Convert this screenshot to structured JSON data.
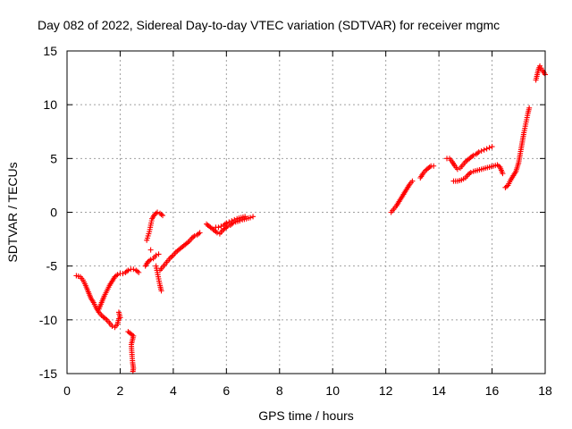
{
  "chart_data": {
    "type": "scatter",
    "title": "Day 082 of 2022, Sidereal Day-to-day VTEC variation (SDTVAR) for receiver mgmc",
    "xlabel": "GPS time / hours",
    "ylabel": "SDTVAR / TECUs",
    "xlim": [
      0,
      18
    ],
    "ylim": [
      -15,
      15
    ],
    "xticks": [
      0,
      2,
      4,
      6,
      8,
      10,
      12,
      14,
      16,
      18
    ],
    "yticks": [
      -15,
      -10,
      -5,
      0,
      5,
      10,
      15
    ],
    "grid": true,
    "marker": "+",
    "color": "#ff0000",
    "segments": [
      [
        [
          0.35,
          -5.9
        ],
        [
          0.5,
          -6.0
        ],
        [
          0.6,
          -6.3
        ],
        [
          0.7,
          -6.8
        ],
        [
          0.8,
          -7.4
        ],
        [
          0.9,
          -8.0
        ],
        [
          1.0,
          -8.4
        ],
        [
          1.1,
          -8.9
        ],
        [
          1.2,
          -9.3
        ],
        [
          1.3,
          -9.6
        ],
        [
          1.4,
          -9.8
        ],
        [
          1.5,
          -10.0
        ],
        [
          1.6,
          -10.3
        ],
        [
          1.7,
          -10.6
        ],
        [
          1.8,
          -10.7
        ],
        [
          1.9,
          -10.4
        ],
        [
          1.95,
          -9.9
        ]
      ],
      [
        [
          1.2,
          -9.0
        ],
        [
          1.3,
          -8.4
        ],
        [
          1.4,
          -7.8
        ],
        [
          1.5,
          -7.3
        ],
        [
          1.6,
          -6.8
        ],
        [
          1.7,
          -6.4
        ],
        [
          1.8,
          -6.0
        ],
        [
          1.9,
          -5.8
        ],
        [
          2.0,
          -5.7
        ],
        [
          2.1,
          -5.7
        ],
        [
          2.2,
          -5.6
        ],
        [
          2.3,
          -5.4
        ],
        [
          2.4,
          -5.3
        ],
        [
          2.5,
          -5.3
        ],
        [
          2.6,
          -5.4
        ],
        [
          2.7,
          -5.6
        ]
      ],
      [
        [
          1.95,
          -9.3
        ],
        [
          2.0,
          -9.8
        ]
      ],
      [
        [
          2.3,
          -11.1
        ],
        [
          2.35,
          -11.2
        ],
        [
          2.4,
          -11.3
        ],
        [
          2.45,
          -11.4
        ],
        [
          2.5,
          -11.5
        ],
        [
          2.42,
          -12.3
        ],
        [
          2.45,
          -13.4
        ],
        [
          2.47,
          -14.0
        ],
        [
          2.5,
          -14.5
        ],
        [
          2.48,
          -14.8
        ]
      ],
      [
        [
          2.95,
          -5.0
        ],
        [
          3.05,
          -4.6
        ],
        [
          3.15,
          -4.4
        ],
        [
          3.25,
          -4.3
        ],
        [
          3.35,
          -4.0
        ],
        [
          3.45,
          -3.9
        ]
      ],
      [
        [
          3.0,
          -2.6
        ],
        [
          3.05,
          -2.2
        ],
        [
          3.1,
          -1.8
        ],
        [
          3.15,
          -1.2
        ],
        [
          3.2,
          -0.6
        ],
        [
          3.3,
          -0.2
        ],
        [
          3.4,
          0.0
        ],
        [
          3.5,
          -0.1
        ],
        [
          3.6,
          -0.3
        ]
      ],
      [
        [
          3.15,
          -3.5
        ]
      ],
      [
        [
          3.35,
          -5.0
        ],
        [
          3.4,
          -5.6
        ],
        [
          3.45,
          -6.2
        ],
        [
          3.5,
          -6.8
        ],
        [
          3.55,
          -7.3
        ]
      ],
      [
        [
          3.5,
          -5.4
        ],
        [
          3.6,
          -5.1
        ],
        [
          3.7,
          -4.8
        ],
        [
          3.8,
          -4.5
        ],
        [
          3.9,
          -4.2
        ],
        [
          4.0,
          -4.0
        ],
        [
          4.1,
          -3.7
        ],
        [
          4.2,
          -3.5
        ],
        [
          4.3,
          -3.3
        ],
        [
          4.4,
          -3.1
        ],
        [
          4.5,
          -2.9
        ],
        [
          4.6,
          -2.7
        ],
        [
          4.7,
          -2.4
        ],
        [
          4.8,
          -2.2
        ],
        [
          4.9,
          -2.1
        ],
        [
          5.0,
          -1.9
        ]
      ],
      [
        [
          5.25,
          -1.1
        ],
        [
          5.35,
          -1.3
        ],
        [
          5.45,
          -1.5
        ],
        [
          5.55,
          -1.7
        ],
        [
          5.65,
          -1.9
        ],
        [
          5.75,
          -2.0
        ],
        [
          5.85,
          -1.7
        ],
        [
          5.95,
          -1.5
        ],
        [
          6.05,
          -1.3
        ],
        [
          6.15,
          -1.2
        ],
        [
          6.25,
          -1.0
        ],
        [
          6.35,
          -0.9
        ],
        [
          6.5,
          -0.8
        ],
        [
          6.6,
          -0.7
        ],
        [
          6.75,
          -0.6
        ],
        [
          6.9,
          -0.5
        ],
        [
          7.0,
          -0.4
        ]
      ],
      [
        [
          5.6,
          -1.4
        ],
        [
          5.7,
          -1.4
        ],
        [
          5.8,
          -1.3
        ],
        [
          5.9,
          -1.2
        ],
        [
          6.0,
          -1.0
        ],
        [
          6.1,
          -0.9
        ],
        [
          6.2,
          -0.8
        ],
        [
          6.3,
          -0.7
        ],
        [
          6.4,
          -0.6
        ],
        [
          6.55,
          -0.5
        ],
        [
          6.7,
          -0.4
        ]
      ],
      [
        [
          12.2,
          0.0
        ],
        [
          12.3,
          0.3
        ],
        [
          12.4,
          0.6
        ],
        [
          12.5,
          1.0
        ],
        [
          12.6,
          1.4
        ],
        [
          12.7,
          1.8
        ],
        [
          12.8,
          2.2
        ],
        [
          12.9,
          2.6
        ],
        [
          13.0,
          2.9
        ]
      ],
      [
        [
          13.3,
          3.2
        ],
        [
          13.4,
          3.6
        ],
        [
          13.5,
          3.9
        ],
        [
          13.6,
          4.1
        ],
        [
          13.7,
          4.3
        ],
        [
          13.8,
          4.3
        ]
      ],
      [
        [
          14.3,
          5.0
        ],
        [
          14.4,
          5.0
        ],
        [
          14.5,
          4.7
        ],
        [
          14.6,
          4.3
        ],
        [
          14.7,
          4.0
        ],
        [
          14.8,
          4.1
        ],
        [
          14.9,
          4.4
        ],
        [
          15.0,
          4.7
        ],
        [
          15.1,
          4.9
        ],
        [
          15.2,
          5.1
        ],
        [
          15.3,
          5.3
        ],
        [
          15.4,
          5.4
        ],
        [
          15.5,
          5.6
        ],
        [
          15.6,
          5.7
        ],
        [
          15.7,
          5.8
        ],
        [
          15.8,
          5.9
        ],
        [
          15.9,
          6.0
        ],
        [
          16.0,
          6.1
        ]
      ],
      [
        [
          14.55,
          2.9
        ],
        [
          14.7,
          2.9
        ],
        [
          14.85,
          3.0
        ],
        [
          15.0,
          3.2
        ],
        [
          15.1,
          3.5
        ],
        [
          15.2,
          3.7
        ],
        [
          15.3,
          3.8
        ],
        [
          15.45,
          3.9
        ],
        [
          15.6,
          4.0
        ],
        [
          15.75,
          4.1
        ],
        [
          15.9,
          4.2
        ],
        [
          16.05,
          4.3
        ],
        [
          16.2,
          4.4
        ],
        [
          16.3,
          4.2
        ],
        [
          16.4,
          3.6
        ]
      ],
      [
        [
          16.5,
          2.3
        ],
        [
          16.6,
          2.5
        ],
        [
          16.7,
          3.0
        ],
        [
          16.8,
          3.4
        ],
        [
          16.9,
          3.8
        ],
        [
          17.0,
          4.6
        ],
        [
          17.05,
          5.3
        ],
        [
          17.1,
          6.0
        ],
        [
          17.15,
          6.7
        ],
        [
          17.2,
          7.4
        ],
        [
          17.25,
          8.0
        ],
        [
          17.3,
          8.6
        ],
        [
          17.35,
          9.2
        ],
        [
          17.4,
          9.7
        ]
      ],
      [
        [
          17.65,
          12.3
        ],
        [
          17.7,
          12.8
        ],
        [
          17.75,
          13.3
        ],
        [
          17.8,
          13.6
        ],
        [
          17.85,
          13.4
        ],
        [
          17.9,
          13.2
        ],
        [
          18.0,
          12.8
        ]
      ]
    ]
  }
}
